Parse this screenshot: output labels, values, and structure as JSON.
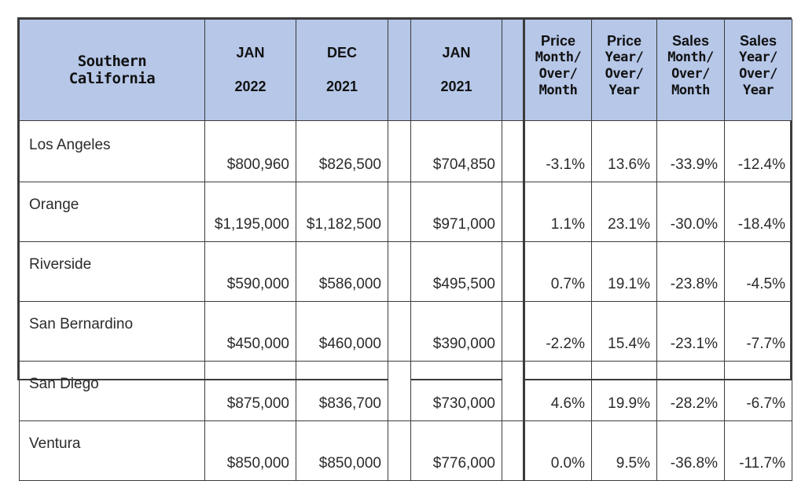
{
  "table": {
    "header": {
      "region_line1": "Southern",
      "region_line2": "California",
      "col_jan2022": {
        "top": "JAN",
        "bottom": "2022"
      },
      "col_dec2021": {
        "top": "DEC",
        "bottom": "2021"
      },
      "col_jan2021": {
        "top": "JAN",
        "bottom": "2021"
      },
      "col_price_mom": {
        "top": "Price",
        "l1": "Month/",
        "l2": "Over/",
        "l3": "Month"
      },
      "col_price_yoy": {
        "top": "Price",
        "l1": "Year/",
        "l2": "Over/",
        "l3": "Year"
      },
      "col_sales_mom": {
        "top": "Sales",
        "l1": "Month/",
        "l2": "Over/",
        "l3": "Month"
      },
      "col_sales_yoy": {
        "top": "Sales",
        "l1": "Year/",
        "l2": "Over/",
        "l3": "Year"
      }
    },
    "rows": [
      {
        "region": "Los Angeles",
        "jan2022": "$800,960",
        "dec2021": "$826,500",
        "jan2021": "$704,850",
        "price_mom": "-3.1%",
        "price_yoy": "13.6%",
        "sales_mom": "-33.9%",
        "sales_yoy": "-12.4%"
      },
      {
        "region": "Orange",
        "jan2022": "$1,195,000",
        "dec2021": "$1,182,500",
        "jan2021": "$971,000",
        "price_mom": "1.1%",
        "price_yoy": "23.1%",
        "sales_mom": "-30.0%",
        "sales_yoy": "-18.4%"
      },
      {
        "region": "Riverside",
        "jan2022": "$590,000",
        "dec2021": "$586,000",
        "jan2021": "$495,500",
        "price_mom": "0.7%",
        "price_yoy": "19.1%",
        "sales_mom": "-23.8%",
        "sales_yoy": "-4.5%"
      },
      {
        "region": "San Bernardino",
        "jan2022": "$450,000",
        "dec2021": "$460,000",
        "jan2021": "$390,000",
        "price_mom": "-2.2%",
        "price_yoy": "15.4%",
        "sales_mom": "-23.1%",
        "sales_yoy": "-7.7%"
      },
      {
        "region": "San Diego",
        "jan2022": "$875,000",
        "dec2021": "$836,700",
        "jan2021": "$730,000",
        "price_mom": "4.6%",
        "price_yoy": "19.9%",
        "sales_mom": "-28.2%",
        "sales_yoy": "-6.7%"
      },
      {
        "region": "Ventura",
        "jan2022": "$850,000",
        "dec2021": "$850,000",
        "jan2021": "$776,000",
        "price_mom": "0.0%",
        "price_yoy": "9.5%",
        "sales_mom": "-36.8%",
        "sales_yoy": "-11.7%"
      }
    ],
    "colors": {
      "header_bg": "#b6c7e8",
      "border": "#3b3b3b"
    }
  }
}
